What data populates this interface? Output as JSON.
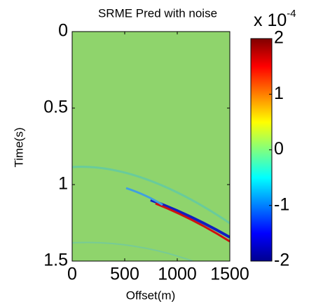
{
  "chart_data": {
    "type": "image",
    "title": "SRME Pred with noise",
    "xlabel": "Offset(m)",
    "ylabel": "Time(s)",
    "xlim": [
      0,
      1500
    ],
    "xticks": [
      0,
      500,
      1000,
      1500
    ],
    "ylim": [
      1.5,
      0
    ],
    "yticks": [
      0,
      0.5,
      1,
      1.5
    ],
    "colorbar": {
      "clim": [
        -2,
        2
      ],
      "ticks": [
        -2,
        -1,
        0,
        1,
        2
      ],
      "scale_label": "x 10",
      "scale_exponent": "-4",
      "colormap": "jet"
    }
  }
}
